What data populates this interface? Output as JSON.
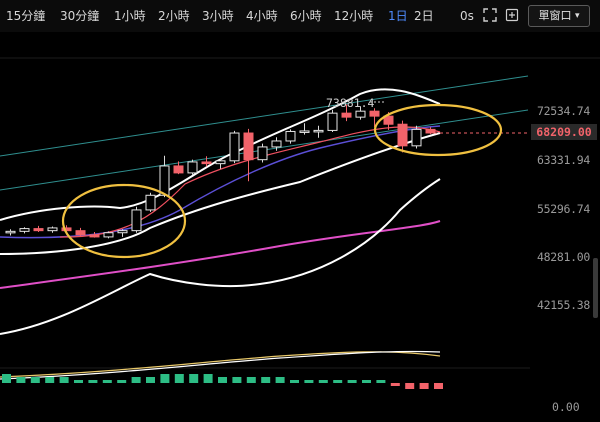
{
  "toolbar": {
    "timeframes": [
      "15分鐘",
      "30分鐘",
      "1小時",
      "2小時",
      "3小時",
      "4小時",
      "6小時",
      "12小時",
      "1日",
      "2日"
    ],
    "active": "1日",
    "interval_label": "0s",
    "window_button": "單窗口"
  },
  "price_axis": {
    "labels": [
      "72534.74",
      "63331.94",
      "55296.74",
      "48281.00",
      "42155.38"
    ],
    "last_price": "68209.00",
    "last_price_color": "#f2636a"
  },
  "annotations": {
    "max_label": "73881.4"
  },
  "indicator": {
    "zero_label": "0.00"
  },
  "colors": {
    "up": "#2dbd85",
    "down": "#f2636a",
    "ma_pink": "#e04fc7",
    "ma_blue": "#5b4fd6",
    "ma_red": "#f05060",
    "band": "#ffffff",
    "channel": "#2f8f8f",
    "highlight": "#f0c040"
  },
  "chart_data": {
    "type": "candlestick",
    "y_axis_ticks": [
      72534.74,
      63331.94,
      55296.74,
      48281.0,
      42155.38
    ],
    "last_price": 68209.0,
    "max_marker": 73881.4,
    "candles": [
      {
        "o": 51600,
        "h": 52100,
        "l": 51200,
        "c": 51800
      },
      {
        "o": 51800,
        "h": 52400,
        "l": 51500,
        "c": 52200
      },
      {
        "o": 52200,
        "h": 52600,
        "l": 51700,
        "c": 51900
      },
      {
        "o": 51900,
        "h": 52500,
        "l": 51600,
        "c": 52300
      },
      {
        "o": 52300,
        "h": 52700,
        "l": 51800,
        "c": 51900
      },
      {
        "o": 51900,
        "h": 52300,
        "l": 51100,
        "c": 51300
      },
      {
        "o": 51300,
        "h": 51700,
        "l": 50900,
        "c": 51000
      },
      {
        "o": 51000,
        "h": 51800,
        "l": 50800,
        "c": 51600
      },
      {
        "o": 51600,
        "h": 52100,
        "l": 51000,
        "c": 51900
      },
      {
        "o": 51900,
        "h": 55500,
        "l": 51600,
        "c": 55000
      },
      {
        "o": 55000,
        "h": 57700,
        "l": 54700,
        "c": 57300
      },
      {
        "o": 57300,
        "h": 64000,
        "l": 57000,
        "c": 62200
      },
      {
        "o": 62200,
        "h": 63000,
        "l": 60800,
        "c": 61000
      },
      {
        "o": 61000,
        "h": 63300,
        "l": 60700,
        "c": 62900
      },
      {
        "o": 62900,
        "h": 63900,
        "l": 62100,
        "c": 62600
      },
      {
        "o": 62600,
        "h": 63400,
        "l": 61700,
        "c": 63100
      },
      {
        "o": 63100,
        "h": 68600,
        "l": 62700,
        "c": 68200
      },
      {
        "o": 68200,
        "h": 69000,
        "l": 59600,
        "c": 63300
      },
      {
        "o": 63300,
        "h": 66200,
        "l": 62800,
        "c": 65600
      },
      {
        "o": 65600,
        "h": 67400,
        "l": 64900,
        "c": 66700
      },
      {
        "o": 66700,
        "h": 68900,
        "l": 66200,
        "c": 68500
      },
      {
        "o": 68500,
        "h": 70100,
        "l": 67900,
        "c": 68600
      },
      {
        "o": 68600,
        "h": 69600,
        "l": 67300,
        "c": 68700
      },
      {
        "o": 68700,
        "h": 72800,
        "l": 68400,
        "c": 72100
      },
      {
        "o": 72100,
        "h": 73881,
        "l": 70500,
        "c": 71300
      },
      {
        "o": 71300,
        "h": 73500,
        "l": 70800,
        "c": 72500
      },
      {
        "o": 72500,
        "h": 73100,
        "l": 69300,
        "c": 71500
      },
      {
        "o": 71500,
        "h": 72300,
        "l": 68800,
        "c": 69900
      },
      {
        "o": 69900,
        "h": 70600,
        "l": 64600,
        "c": 65800
      },
      {
        "o": 65800,
        "h": 69600,
        "l": 65300,
        "c": 68900
      },
      {
        "o": 68900,
        "h": 69300,
        "l": 68000,
        "c": 68209
      }
    ],
    "volume_bars": [
      3,
      2,
      2,
      2,
      2,
      1,
      1,
      1,
      1,
      2,
      2,
      3,
      3,
      3,
      3,
      2,
      2,
      2,
      2,
      2,
      1,
      1,
      1,
      1,
      1,
      1,
      1,
      -1,
      -2,
      -2,
      -2
    ],
    "highlight_zones": [
      "left-bottom",
      "right-top"
    ]
  }
}
